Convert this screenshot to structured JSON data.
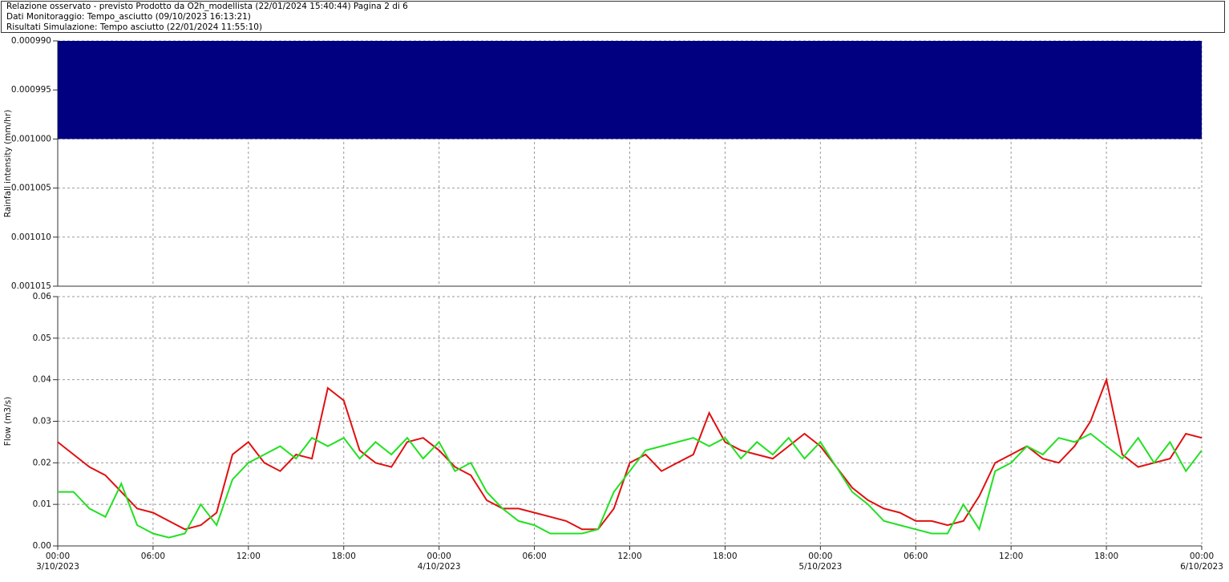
{
  "header": {
    "line1": "Relazione osservato - previsto Prodotto da O2h_modellista (22/01/2024 15:40:44) Pagina 2 di 6",
    "line2": "Dati Monitoraggio: Tempo_asciutto (09/10/2023 16:13:21)",
    "line3": "Risultati Simulazione: Tempo asciutto (22/01/2024 11:55:10)"
  },
  "chart_data": [
    {
      "type": "area",
      "y_label": "Rainfall intensity (mm/hr)",
      "inverted": true,
      "xlim": [
        0,
        72
      ],
      "ylim": [
        0.00099,
        0.001015
      ],
      "yticks": [
        {
          "value": 0.00099,
          "label": "0.000990"
        },
        0.000995,
        {
          "value": 0.001,
          "label": "0.001000"
        },
        0.001005,
        {
          "value": 0.00101,
          "label": "0.001010"
        },
        0.001015
      ],
      "grid": true,
      "series": [
        {
          "color": "#000080",
          "x": [
            0,
            72
          ],
          "values": [
            0.001,
            0.001
          ]
        }
      ]
    },
    {
      "type": "line",
      "y_label": "Flow (m3/s)",
      "xlim": [
        0,
        72
      ],
      "ylim": [
        0,
        0.06
      ],
      "yticks": [
        {
          "value": 0,
          "label": "0.00"
        },
        0.01,
        0.02,
        0.03,
        0.04,
        0.05,
        0.06
      ],
      "xticks": [
        {
          "value": 0,
          "label": "00:00"
        },
        {
          "value": 6,
          "label": "06:00"
        },
        {
          "value": 12,
          "label": "12:00"
        },
        {
          "value": 18,
          "label": "18:00"
        },
        {
          "value": 24,
          "label": "00:00"
        },
        {
          "value": 30,
          "label": "06:00"
        },
        {
          "value": 36,
          "label": "12:00"
        },
        {
          "value": 42,
          "label": "18:00"
        },
        {
          "value": 48,
          "label": "00:00"
        },
        {
          "value": 54,
          "label": "06:00"
        },
        {
          "value": 60,
          "label": "12:00"
        },
        {
          "value": 66,
          "label": "18:00"
        },
        {
          "value": 72,
          "label": "00:00"
        }
      ],
      "xdate_labels": [
        {
          "value": 0,
          "label": "3/10/2023"
        },
        {
          "value": 24,
          "label": "4/10/2023"
        },
        {
          "value": 48,
          "label": "5/10/2023"
        },
        {
          "value": 72,
          "label": "6/10/2023"
        }
      ],
      "grid": true,
      "x": [
        0,
        1,
        2,
        3,
        4,
        5,
        6,
        7,
        8,
        9,
        10,
        11,
        12,
        13,
        14,
        15,
        16,
        17,
        18,
        19,
        20,
        21,
        22,
        23,
        24,
        25,
        26,
        27,
        28,
        29,
        30,
        31,
        32,
        33,
        34,
        35,
        36,
        37,
        38,
        39,
        40,
        41,
        42,
        43,
        44,
        45,
        46,
        47,
        48,
        49,
        50,
        51,
        52,
        53,
        54,
        55,
        56,
        57,
        58,
        59,
        60,
        61,
        62,
        63,
        64,
        65,
        66,
        67,
        68,
        69,
        70,
        71,
        72
      ],
      "series": [
        {
          "color": "#e01010",
          "values": [
            0.025,
            0.022,
            0.019,
            0.017,
            0.013,
            0.009,
            0.008,
            0.006,
            0.004,
            0.005,
            0.008,
            0.022,
            0.025,
            0.02,
            0.018,
            0.022,
            0.021,
            0.038,
            0.035,
            0.023,
            0.02,
            0.019,
            0.025,
            0.026,
            0.023,
            0.019,
            0.017,
            0.011,
            0.009,
            0.009,
            0.008,
            0.007,
            0.006,
            0.004,
            0.004,
            0.009,
            0.02,
            0.022,
            0.018,
            0.02,
            0.022,
            0.032,
            0.025,
            0.023,
            0.022,
            0.021,
            0.024,
            0.027,
            0.024,
            0.019,
            0.014,
            0.011,
            0.009,
            0.008,
            0.006,
            0.006,
            0.005,
            0.006,
            0.012,
            0.02,
            0.022,
            0.024,
            0.021,
            0.02,
            0.024,
            0.03,
            0.04,
            0.022,
            0.019,
            0.02,
            0.021,
            0.027,
            0.026
          ]
        },
        {
          "color": "#22e022",
          "values": [
            0.013,
            0.013,
            0.009,
            0.007,
            0.015,
            0.005,
            0.003,
            0.002,
            0.003,
            0.01,
            0.005,
            0.016,
            0.02,
            0.022,
            0.024,
            0.021,
            0.026,
            0.024,
            0.026,
            0.021,
            0.025,
            0.022,
            0.026,
            0.021,
            0.025,
            0.018,
            0.02,
            0.013,
            0.009,
            0.006,
            0.005,
            0.003,
            0.003,
            0.003,
            0.004,
            0.013,
            0.018,
            0.023,
            0.024,
            0.025,
            0.026,
            0.024,
            0.026,
            0.021,
            0.025,
            0.022,
            0.026,
            0.021,
            0.025,
            0.019,
            0.013,
            0.01,
            0.006,
            0.005,
            0.004,
            0.003,
            0.003,
            0.01,
            0.004,
            0.018,
            0.02,
            0.024,
            0.022,
            0.026,
            0.025,
            0.027,
            0.024,
            0.021,
            0.026,
            0.02,
            0.025,
            0.018,
            0.023
          ]
        }
      ]
    }
  ]
}
